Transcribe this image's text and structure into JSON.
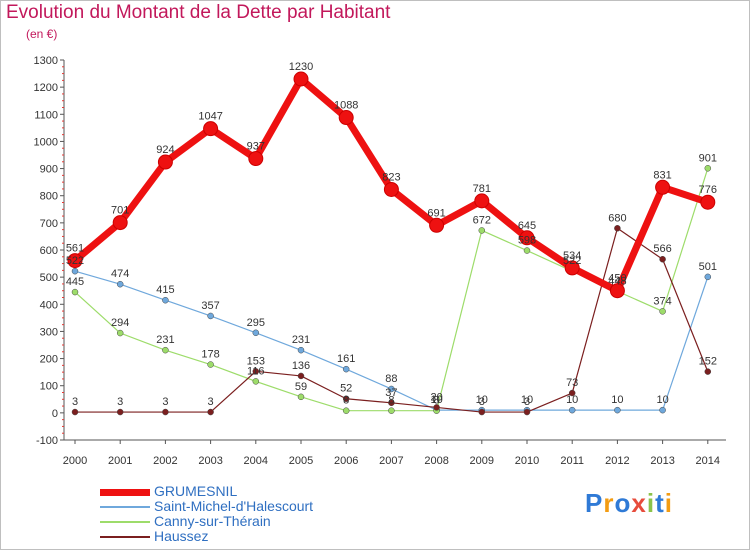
{
  "title": "Evolution du Montant de la Dette par Habitant",
  "subtitle": "(en €)",
  "logo": {
    "text": "Proxiti",
    "colors": [
      "#2f7ad6",
      "#f39c12",
      "#2f7ad6",
      "#e74c3c",
      "#8bc34a",
      "#2f7ad6",
      "#f39c12"
    ]
  },
  "chart_data": {
    "type": "line",
    "x": [
      "2000",
      "2001",
      "2002",
      "2003",
      "2004",
      "2005",
      "2006",
      "2007",
      "2008",
      "2009",
      "2010",
      "2011",
      "2012",
      "2013",
      "2014"
    ],
    "ylim": [
      -100,
      1300
    ],
    "yticks": [
      "-100",
      "0",
      "100",
      "200",
      "300",
      "400",
      "500",
      "600",
      "700",
      "800",
      "900",
      "1000",
      "1100",
      "1200",
      "1300"
    ],
    "grid": false,
    "legend_position": "bottom-left",
    "series": [
      {
        "name": "GRUMESNIL",
        "color": "#ee1111",
        "width": 7,
        "marker": 7,
        "values": [
          561,
          701,
          924,
          1047,
          937,
          1230,
          1088,
          823,
          691,
          781,
          645,
          534,
          450,
          831,
          776
        ],
        "labels": [
          "561",
          "701",
          "924",
          "1047",
          "937",
          "1230",
          "1088",
          "823",
          "691",
          "781",
          "645",
          "534",
          "450",
          "831",
          "776"
        ]
      },
      {
        "name": "Saint-Michel-d'Halescourt",
        "color": "#6fa8dc",
        "width": 1.2,
        "marker": 3,
        "values": [
          522,
          474,
          415,
          357,
          295,
          231,
          161,
          88,
          10,
          10,
          10,
          10,
          10,
          10,
          501
        ],
        "labels": [
          "522",
          "474",
          "415",
          "357",
          "295",
          "231",
          "161",
          "88",
          "10",
          "10",
          "10",
          "10",
          "10",
          "10",
          "501"
        ]
      },
      {
        "name": "Canny-sur-Thérain",
        "color": "#9ddc6a",
        "width": 1.2,
        "marker": 3,
        "values": [
          445,
          294,
          231,
          178,
          116,
          59,
          8,
          8,
          8,
          672,
          598,
          522,
          448,
          374,
          901
        ],
        "labels": [
          "445",
          "294",
          "231",
          "178",
          "116",
          "59",
          "8",
          "8",
          "8",
          "672",
          "598",
          "522",
          "448",
          "374",
          "901"
        ]
      },
      {
        "name": "Haussez",
        "color": "#7b1f1f",
        "width": 1.2,
        "marker": 3,
        "values": [
          3,
          3,
          3,
          3,
          153,
          136,
          52,
          37,
          20,
          3,
          3,
          73,
          680,
          566,
          152
        ],
        "labels": [
          "3",
          "3",
          "3",
          "3",
          "153",
          "136",
          "52",
          "37",
          "20",
          "3",
          "3",
          "73",
          "680",
          "566",
          "152"
        ]
      }
    ]
  }
}
